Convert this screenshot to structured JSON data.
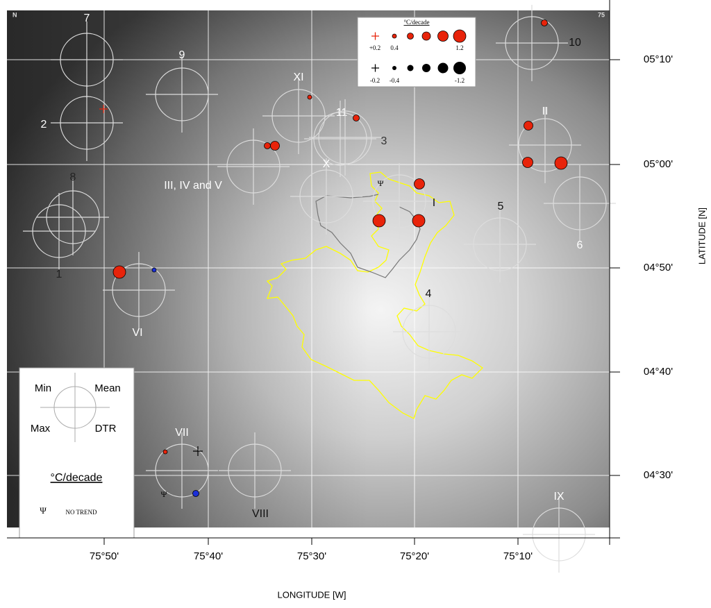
{
  "map": {
    "corner_left": "N",
    "corner_right": "75"
  },
  "axes": {
    "x_label": "LONGITUDE [W]",
    "y_label": "LATITUDE [N]",
    "x_ticks": [
      "75°50'",
      "75°40'",
      "75°30'",
      "75°20'",
      "75°10'"
    ],
    "y_ticks": [
      "05°10'",
      "05°00'",
      "04°50'",
      "04°40'",
      "04°30'"
    ]
  },
  "stations": [
    {
      "label": "7"
    },
    {
      "label": "9"
    },
    {
      "label": "2"
    },
    {
      "label": "XI"
    },
    {
      "label": "11"
    },
    {
      "label": "3"
    },
    {
      "label": "III, IV and V"
    },
    {
      "label": "X"
    },
    {
      "label": "8"
    },
    {
      "label": "1"
    },
    {
      "label": "I"
    },
    {
      "label": "5"
    },
    {
      "label": "6"
    },
    {
      "label": "II"
    },
    {
      "label": "10"
    },
    {
      "label": "VI"
    },
    {
      "label": "4"
    },
    {
      "label": "VII"
    },
    {
      "label": "VIII"
    },
    {
      "label": "IX"
    }
  ],
  "legend_trend": {
    "title": "°C/decade",
    "pos_labels": [
      "+0.2",
      "0.4",
      "1.2"
    ],
    "neg_labels": [
      "-0.2",
      "-0.4",
      "-1.2"
    ]
  },
  "legend_key": {
    "min": "Min",
    "mean": "Mean",
    "max": "Max",
    "dtr": "DTR",
    "unit": "°C/decade",
    "no_trend_symbol": "Ψ",
    "no_trend": "NO TREND"
  }
}
